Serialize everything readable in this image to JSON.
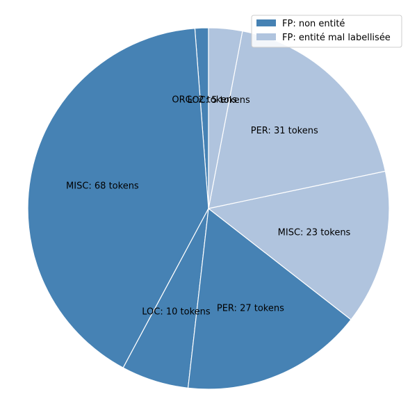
{
  "chart_data": {
    "type": "pie",
    "title": "",
    "slices": [
      {
        "label": "ORG: 2 tokens",
        "category": "ORG",
        "value": 2,
        "series": "FP: non entité"
      },
      {
        "label": "MISC: 68 tokens",
        "category": "MISC",
        "value": 68,
        "series": "FP: non entité"
      },
      {
        "label": "LOC: 10 tokens",
        "category": "LOC",
        "value": 10,
        "series": "FP: non entité"
      },
      {
        "label": "PER: 27 tokens",
        "category": "PER",
        "value": 27,
        "series": "FP: non entité"
      },
      {
        "label": "MISC: 23 tokens",
        "category": "MISC",
        "value": 23,
        "series": "FP: entité mal labellisée"
      },
      {
        "label": "PER: 31 tokens",
        "category": "PER",
        "value": 31,
        "series": "FP: entité mal labellisée"
      },
      {
        "label": "LOC: 5 tokens",
        "category": "LOC",
        "value": 5,
        "series": "FP: entité mal labellisée"
      }
    ],
    "legend": {
      "placement": "top-right",
      "entries": [
        {
          "name": "FP: non entité",
          "color": "#4682b4"
        },
        {
          "name": "FP: entité mal labellisée",
          "color": "#b0c4de"
        }
      ]
    },
    "start_angle_deg": 90,
    "direction": "counterclockwise",
    "edge_color": "#ffffff"
  }
}
